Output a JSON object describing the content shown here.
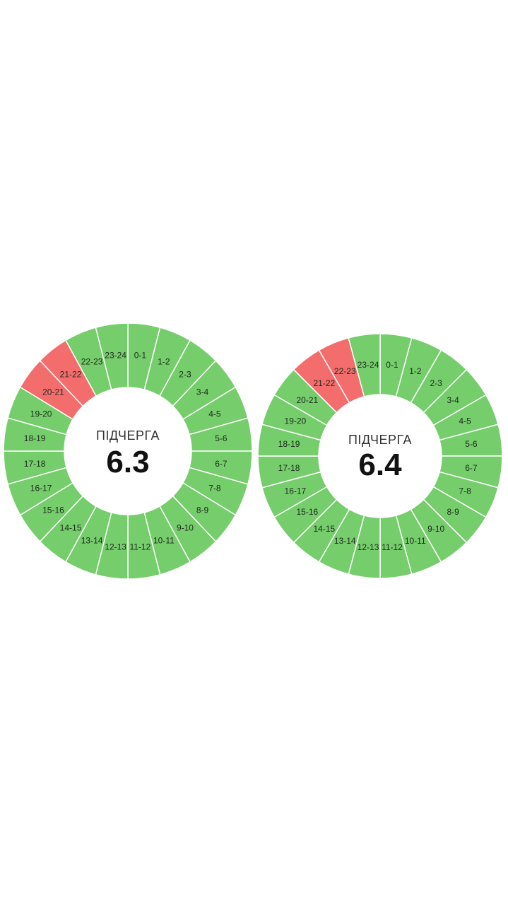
{
  "colors": {
    "on": "#75cd6b",
    "off": "#f46d6d",
    "separator": "#ffffff"
  },
  "chart_data": [
    {
      "type": "pie",
      "center_title": "ПІДЧЕРГА",
      "center_value": "6.3",
      "categories": [
        "0-1",
        "1-2",
        "2-3",
        "3-4",
        "4-5",
        "5-6",
        "6-7",
        "7-8",
        "8-9",
        "9-10",
        "10-11",
        "11-12",
        "12-13",
        "13-14",
        "14-15",
        "15-16",
        "16-17",
        "17-18",
        "18-19",
        "19-20",
        "20-21",
        "21-22",
        "22-23",
        "23-24"
      ],
      "status": [
        "on",
        "on",
        "on",
        "on",
        "on",
        "on",
        "on",
        "on",
        "on",
        "on",
        "on",
        "on",
        "on",
        "on",
        "on",
        "on",
        "on",
        "on",
        "on",
        "on",
        "off",
        "off",
        "on",
        "on"
      ]
    },
    {
      "type": "pie",
      "center_title": "ПІДЧЕРГА",
      "center_value": "6.4",
      "categories": [
        "0-1",
        "1-2",
        "2-3",
        "3-4",
        "4-5",
        "5-6",
        "6-7",
        "7-8",
        "8-9",
        "9-10",
        "10-11",
        "11-12",
        "12-13",
        "13-14",
        "14-15",
        "15-16",
        "16-17",
        "17-18",
        "18-19",
        "19-20",
        "20-21",
        "21-22",
        "22-23",
        "23-24"
      ],
      "status": [
        "on",
        "on",
        "on",
        "on",
        "on",
        "on",
        "on",
        "on",
        "on",
        "on",
        "on",
        "on",
        "on",
        "on",
        "on",
        "on",
        "on",
        "on",
        "on",
        "on",
        "on",
        "off",
        "off",
        "on"
      ]
    }
  ]
}
